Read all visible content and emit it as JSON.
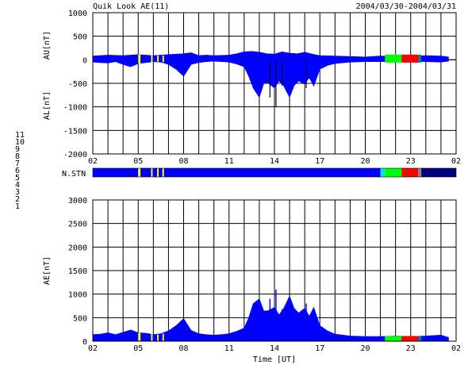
{
  "header": {
    "title": "Quik Look AE(11)",
    "date_range": "2004/03/30-2004/03/31"
  },
  "station_key": {
    "label": "N.STN",
    "levels": [
      {
        "label": "11",
        "color": "#00e5e5"
      },
      {
        "label": "10",
        "color": "#ff00ff"
      },
      {
        "label": "9",
        "color": "#0000c8"
      },
      {
        "label": "8",
        "color": "#ffff00"
      },
      {
        "label": "7",
        "color": "#00dd00"
      },
      {
        "label": "6",
        "color": "#ff0000"
      },
      {
        "label": "5",
        "color": "#bbbbbb"
      },
      {
        "label": "4",
        "color": "#888888"
      },
      {
        "label": "3",
        "color": "#00aaaa"
      },
      {
        "label": "2",
        "color": "#aa00aa"
      },
      {
        "label": "1",
        "color": "#0000aa"
      }
    ]
  },
  "chart_data": [
    {
      "type": "area",
      "panel": "AU/AL",
      "ylabel_upper": "AU[nT]",
      "ylabel_lower": "AL[nT]",
      "ylim": [
        -2000,
        1000
      ],
      "yticks": [
        "1000",
        "500",
        "0",
        "-500",
        "-1000",
        "-1500",
        "-2000"
      ],
      "xticks": [
        "02",
        "05",
        "08",
        "11",
        "14",
        "17",
        "20",
        "23",
        "02"
      ],
      "grid": true,
      "fill_color": "#0000ff",
      "au": {
        "x": [
          0,
          1,
          2,
          3,
          4,
          5,
          6,
          6.5,
          7,
          7.5,
          8,
          9,
          9.5,
          10,
          10.5,
          11,
          11.5,
          12,
          12.5,
          13,
          13.5,
          14,
          14.5,
          15,
          16,
          17,
          18,
          19,
          20,
          21,
          22,
          23,
          23.5
        ],
        "y": [
          80,
          100,
          90,
          110,
          90,
          110,
          130,
          150,
          90,
          100,
          90,
          100,
          130,
          170,
          180,
          160,
          130,
          120,
          170,
          140,
          130,
          160,
          120,
          90,
          80,
          70,
          60,
          80,
          70,
          70,
          90,
          80,
          60
        ]
      },
      "al": {
        "x": [
          0,
          0.5,
          1,
          1.5,
          2,
          2.5,
          3,
          3.5,
          4,
          4.5,
          5,
          5.5,
          6,
          6.5,
          7,
          7.5,
          8,
          8.5,
          9,
          9.5,
          10,
          10.3,
          10.6,
          11,
          11.3,
          11.6,
          12,
          12.3,
          12.6,
          13,
          13.3,
          13.6,
          14,
          14.3,
          14.6,
          15,
          15.5,
          16,
          17,
          18,
          19,
          20,
          21,
          22,
          23,
          23.5
        ],
        "y": [
          -50,
          -60,
          -70,
          -40,
          -100,
          -150,
          -80,
          -60,
          -40,
          -50,
          -100,
          -200,
          -350,
          -100,
          -60,
          -40,
          -30,
          -40,
          -50,
          -90,
          -150,
          -350,
          -600,
          -800,
          -500,
          -500,
          -600,
          -450,
          -550,
          -800,
          -550,
          -450,
          -520,
          -380,
          -560,
          -200,
          -120,
          -80,
          -50,
          -40,
          -40,
          -30,
          -30,
          -40,
          -50,
          -30
        ]
      },
      "spikes": [
        {
          "x": 11.7,
          "y": -800
        },
        {
          "x": 12.1,
          "y": -1000
        },
        {
          "x": 12.5,
          "y": -550
        },
        {
          "x": 14.1,
          "y": -600
        }
      ],
      "quiet_line": {
        "x": [
          23.5,
          24
        ],
        "y": [
          0,
          0
        ]
      },
      "overlays": [
        {
          "x0": 3.0,
          "x1": 3.15,
          "color": "#ffff00"
        },
        {
          "x0": 3.85,
          "x1": 3.95,
          "color": "#ffff00"
        },
        {
          "x0": 4.25,
          "x1": 4.35,
          "color": "#ffff00"
        },
        {
          "x0": 4.6,
          "x1": 4.7,
          "color": "#ffff00"
        },
        {
          "x0": 19.3,
          "x1": 19.55,
          "color": "#00ff00"
        },
        {
          "x0": 19.55,
          "x1": 20.4,
          "color": "#00ff00"
        },
        {
          "x0": 20.4,
          "x1": 21.5,
          "color": "#ff0000"
        },
        {
          "x0": 21.5,
          "x1": 21.7,
          "color": "#008888"
        }
      ]
    },
    {
      "type": "area",
      "panel": "AE",
      "ylabel": "AE[nT]",
      "xlabel": "Time [UT]",
      "ylim": [
        0,
        3000
      ],
      "yticks": [
        "3000",
        "2500",
        "2000",
        "1500",
        "1000",
        "500",
        "0"
      ],
      "xticks": [
        "02",
        "05",
        "08",
        "11",
        "14",
        "17",
        "20",
        "23",
        "02"
      ],
      "grid": true,
      "fill_color": "#0000ff",
      "x": [
        0,
        0.5,
        1,
        1.5,
        2,
        2.5,
        3,
        3.5,
        4,
        4.5,
        5,
        5.5,
        6,
        6.5,
        7,
        7.5,
        8,
        8.5,
        9,
        9.5,
        10,
        10.3,
        10.6,
        11,
        11.3,
        11.6,
        12,
        12.3,
        12.6,
        13,
        13.3,
        13.6,
        14,
        14.3,
        14.6,
        15,
        15.5,
        16,
        17,
        18,
        19,
        20,
        21,
        22,
        23,
        23.5
      ],
      "y": [
        140,
        150,
        180,
        140,
        190,
        240,
        180,
        170,
        140,
        160,
        220,
        330,
        480,
        230,
        160,
        140,
        130,
        140,
        160,
        210,
        280,
        500,
        800,
        900,
        640,
        650,
        720,
        560,
        690,
        960,
        700,
        600,
        700,
        530,
        720,
        330,
        220,
        150,
        110,
        100,
        100,
        110,
        100,
        110,
        130,
        80
      ],
      "spikes": [
        {
          "x": 11.7,
          "y": 900
        },
        {
          "x": 12.1,
          "y": 1100
        },
        {
          "x": 12.5,
          "y": 680
        },
        {
          "x": 14.1,
          "y": 800
        }
      ],
      "overlays": [
        {
          "x0": 3.0,
          "x1": 3.15,
          "color": "#ffff00"
        },
        {
          "x0": 3.85,
          "x1": 3.95,
          "color": "#ffff00"
        },
        {
          "x0": 4.25,
          "x1": 4.35,
          "color": "#ffff00"
        },
        {
          "x0": 4.6,
          "x1": 4.7,
          "color": "#ffff00"
        },
        {
          "x0": 19.3,
          "x1": 20.4,
          "color": "#00ff00"
        },
        {
          "x0": 20.4,
          "x1": 21.5,
          "color": "#ff0000"
        },
        {
          "x0": 21.5,
          "x1": 21.7,
          "color": "#008888"
        }
      ]
    },
    {
      "type": "heatmap",
      "panel": "N.STN",
      "segments": [
        {
          "x0": 0,
          "x1": 3.0,
          "color": "#0000ff"
        },
        {
          "x0": 3.0,
          "x1": 3.15,
          "color": "#ffff00"
        },
        {
          "x0": 3.15,
          "x1": 3.85,
          "color": "#0000ff"
        },
        {
          "x0": 3.85,
          "x1": 3.95,
          "color": "#ffff00"
        },
        {
          "x0": 3.95,
          "x1": 4.25,
          "color": "#0000ff"
        },
        {
          "x0": 4.25,
          "x1": 4.35,
          "color": "#ffff00"
        },
        {
          "x0": 4.35,
          "x1": 4.6,
          "color": "#0000ff"
        },
        {
          "x0": 4.6,
          "x1": 4.7,
          "color": "#ffff00"
        },
        {
          "x0": 4.7,
          "x1": 19.0,
          "color": "#0000ff"
        },
        {
          "x0": 19.0,
          "x1": 19.3,
          "color": "#00e5e5"
        },
        {
          "x0": 19.3,
          "x1": 20.4,
          "color": "#00ff00"
        },
        {
          "x0": 20.4,
          "x1": 21.5,
          "color": "#ff0000"
        },
        {
          "x0": 21.5,
          "x1": 21.7,
          "color": "#888888"
        },
        {
          "x0": 21.7,
          "x1": 24.0,
          "color": "#000080"
        }
      ]
    }
  ]
}
